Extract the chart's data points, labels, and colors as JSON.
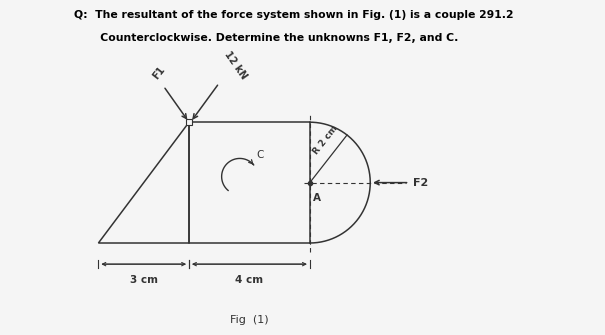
{
  "title_line1": "Q:  The resultant of the force system shown in Fig. (1) is a couple 291.2",
  "title_line2": "       Counterclockwise. Determine the unknowns F1, F2, and C.",
  "fig_label": "Fig  (1)",
  "bg_color": "#f5f5f5",
  "line_color": "#333333",
  "label_3cm": "3 cm",
  "label_4cm": "4 cm",
  "label_F1": "F1",
  "label_F2": "F2",
  "label_12kN": "12 kN",
  "label_C": "C",
  "label_R": "R 2 cm",
  "label_A": "A"
}
